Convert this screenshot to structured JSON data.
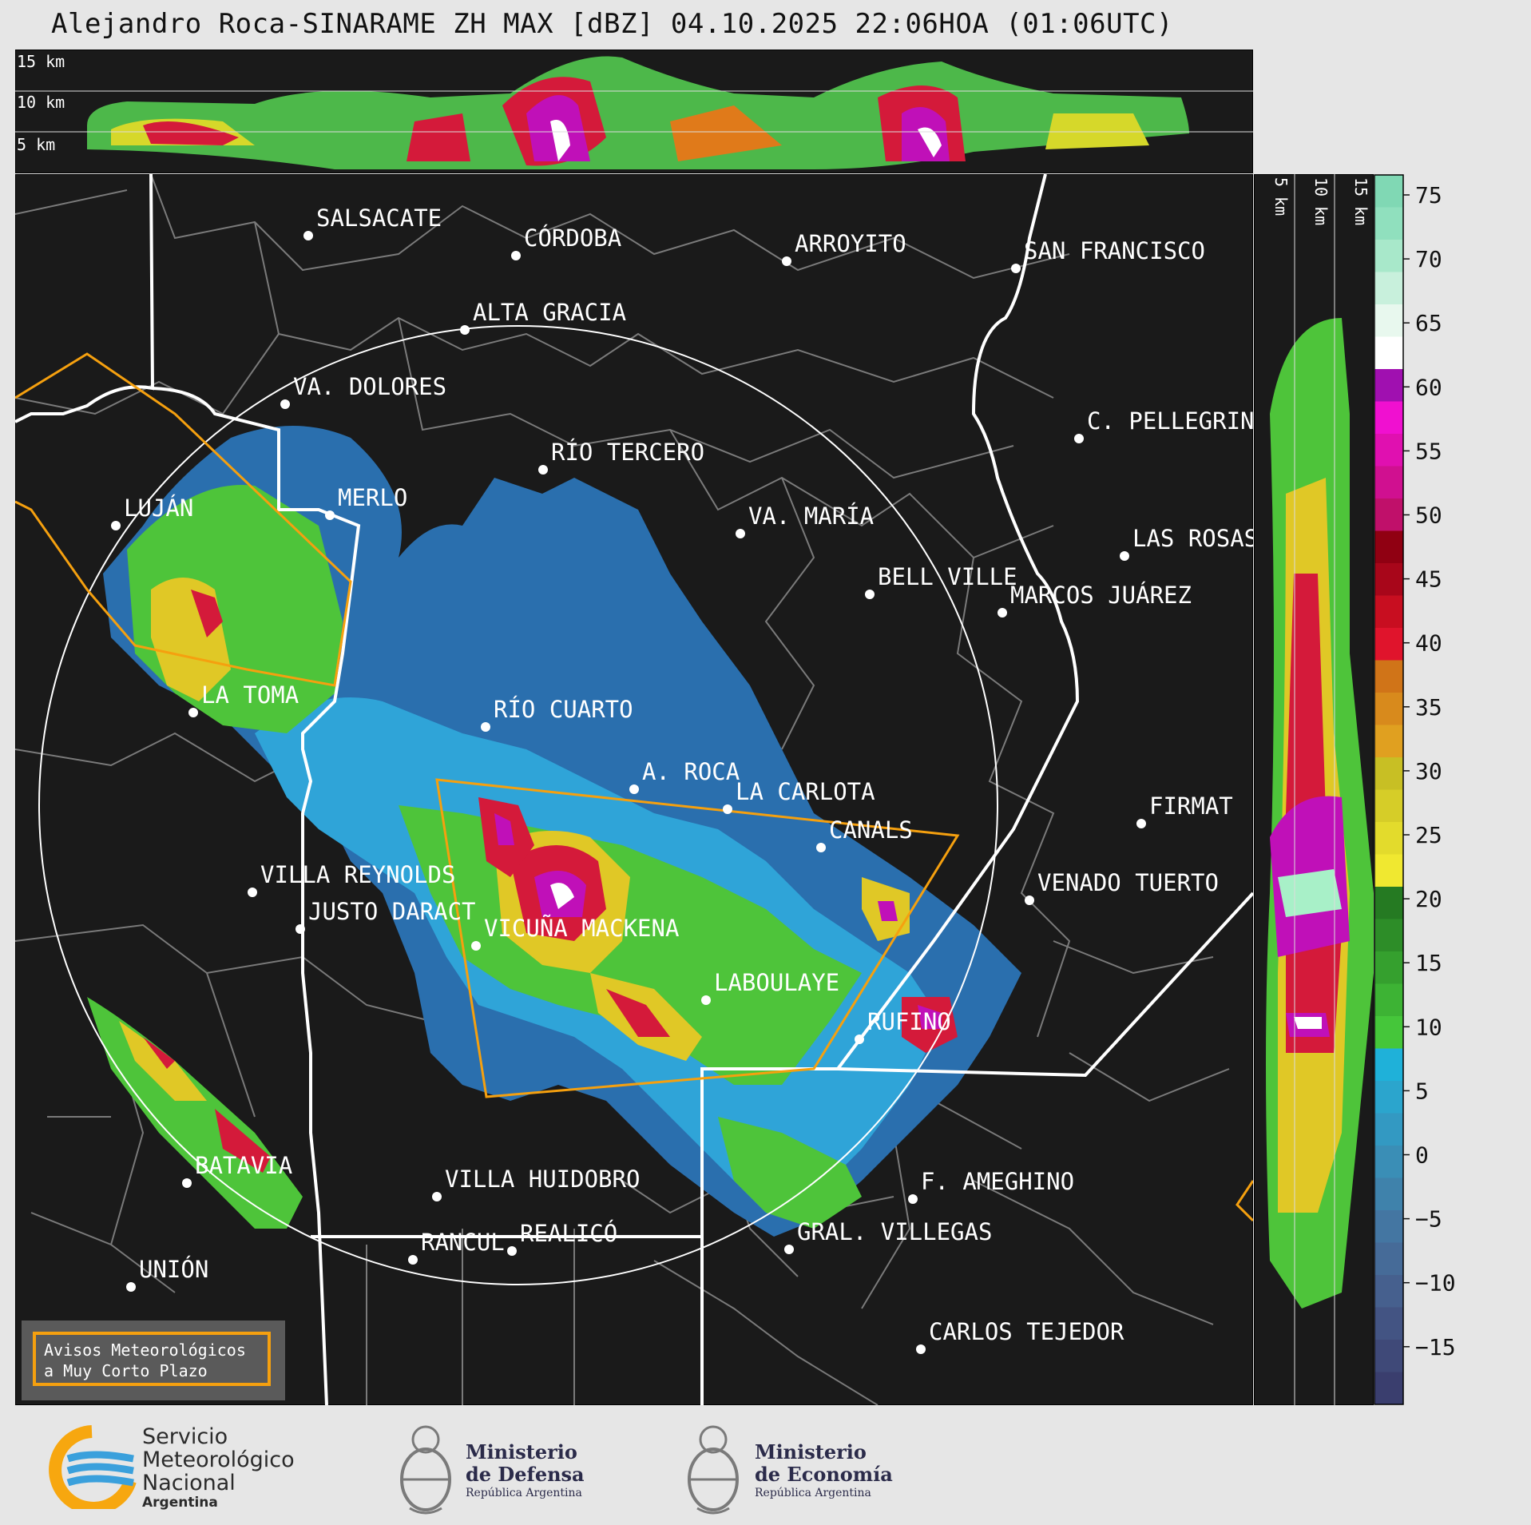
{
  "title": "Alejandro Roca-SINARAME ZH MAX [dBZ] 04.10.2025 22:06HOA (01:06UTC)",
  "height_labels_top": [
    "15 km",
    "10 km",
    "5 km"
  ],
  "height_labels_side": [
    "5 km",
    "10 km",
    "15 km"
  ],
  "colorbar": {
    "ticks": [
      "75",
      "70",
      "65",
      "60",
      "55",
      "50",
      "45",
      "40",
      "35",
      "30",
      "25",
      "20",
      "15",
      "10",
      "5",
      "0",
      "−5",
      "−10",
      "−15"
    ],
    "unit": "dBZ"
  },
  "cities": [
    {
      "name": "SALSACATE"
    },
    {
      "name": "CÓRDOBA"
    },
    {
      "name": "ARROYITO"
    },
    {
      "name": "SAN FRANCISCO"
    },
    {
      "name": "ALTA GRACIA"
    },
    {
      "name": "VA. DOLORES"
    },
    {
      "name": "C. PELLEGRINI"
    },
    {
      "name": "RÍO TERCERO"
    },
    {
      "name": "MERLO"
    },
    {
      "name": "LUJÁN"
    },
    {
      "name": "VA. MARÍA"
    },
    {
      "name": "LAS ROSAS"
    },
    {
      "name": "BELL VILLE"
    },
    {
      "name": "MARCOS JUÁREZ"
    },
    {
      "name": "LA TOMA"
    },
    {
      "name": "RÍO CUARTO"
    },
    {
      "name": "A. ROCA"
    },
    {
      "name": "LA CARLOTA"
    },
    {
      "name": "FIRMAT"
    },
    {
      "name": "CANALS"
    },
    {
      "name": "VILLA REYNOLDS"
    },
    {
      "name": "VENADO TUERTO"
    },
    {
      "name": "JUSTO DARACT"
    },
    {
      "name": "VICUÑA MACKENA"
    },
    {
      "name": "LABOULAYE"
    },
    {
      "name": "RUFINO"
    },
    {
      "name": "BATAVIA"
    },
    {
      "name": "VILLA HUIDOBRO"
    },
    {
      "name": "F. AMEGHINO"
    },
    {
      "name": "REALICÓ"
    },
    {
      "name": "RANCUL"
    },
    {
      "name": "GRAL. VILLEGAS"
    },
    {
      "name": "UNIÓN"
    },
    {
      "name": "CARLOS TEJEDOR"
    }
  ],
  "legend": {
    "line1": "Avisos Meteorológicos",
    "line2": "a Muy Corto Plazo",
    "color": "#f5a00f"
  },
  "logos": {
    "smn": [
      "Servicio",
      "Meteorológico",
      "Nacional",
      "Argentina"
    ],
    "defensa": [
      "Ministerio",
      "de Defensa",
      "República Argentina"
    ],
    "economia": [
      "Ministerio",
      "de Economía",
      "República Argentina"
    ]
  },
  "colors": {
    "map_bg": "#1a1a1a",
    "boundary": "#ffffff",
    "warning": "#f5a00f",
    "range_ring": "#ffffff"
  }
}
